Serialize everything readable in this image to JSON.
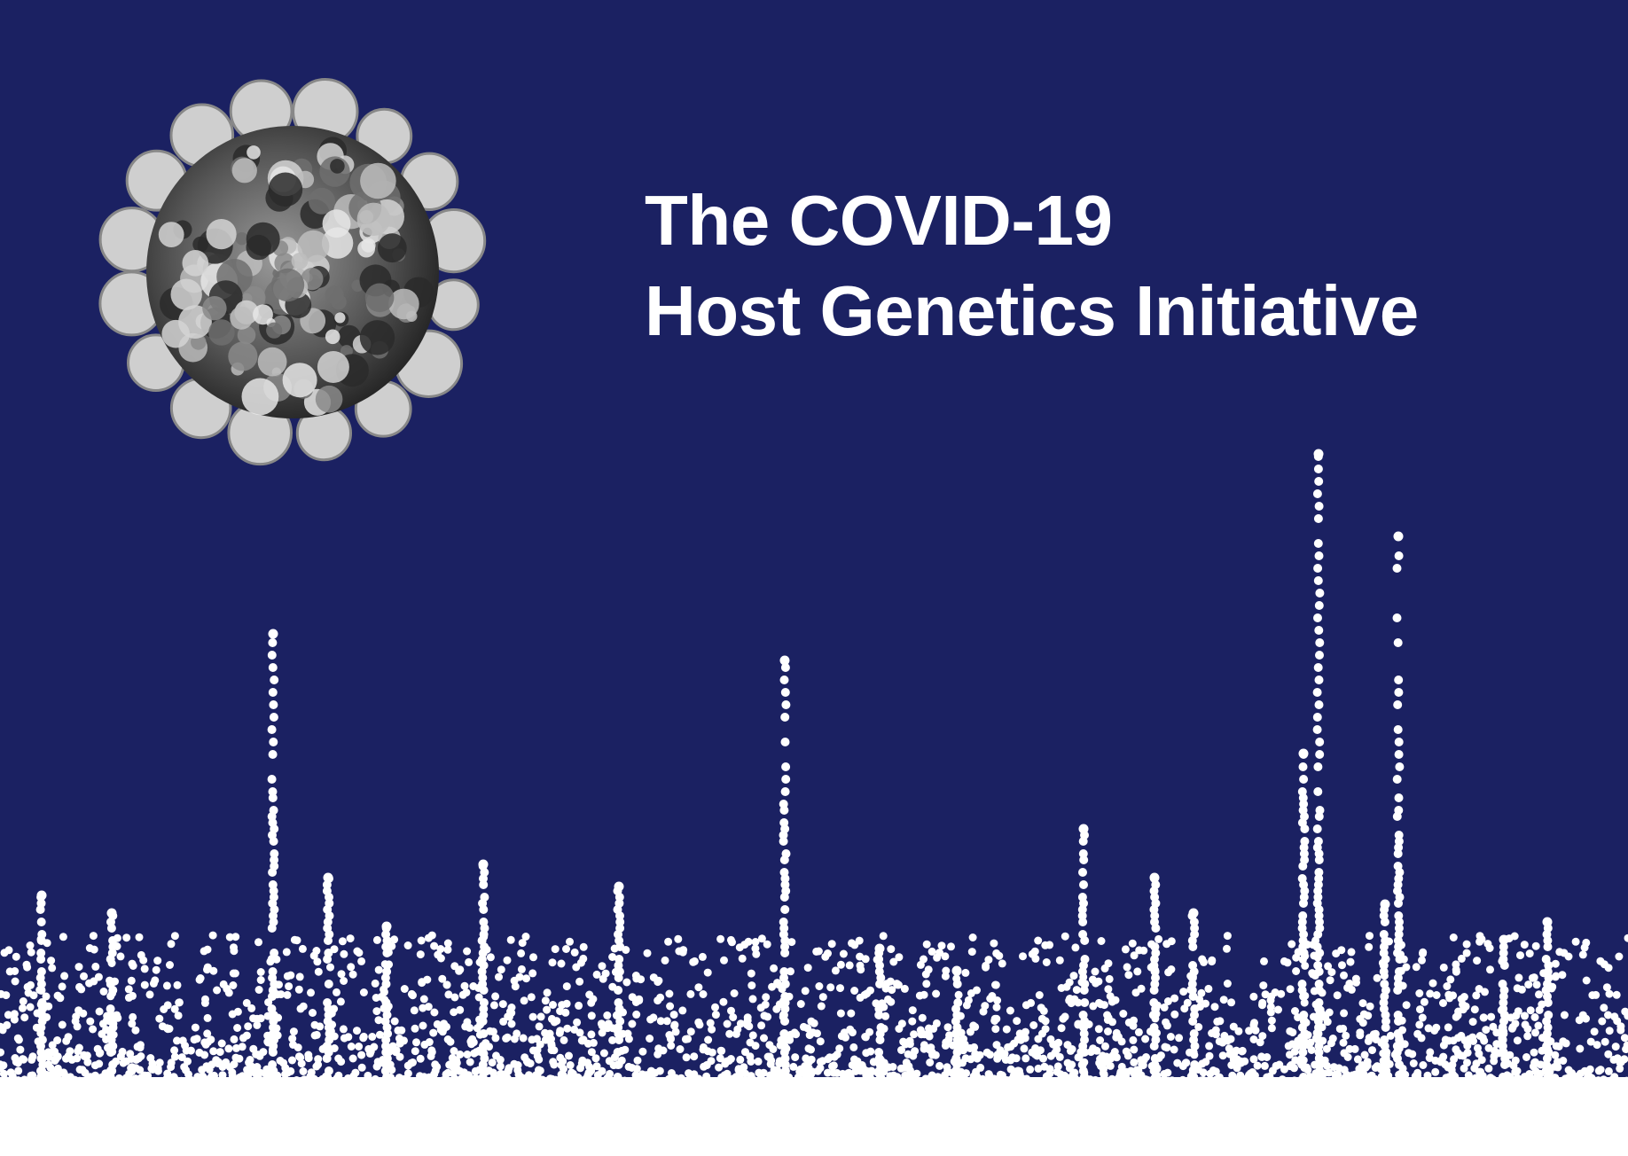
{
  "title": {
    "line1": "The COVID-19",
    "line2": "Host Genetics Initiative"
  },
  "colors": {
    "background": "#1b2162",
    "foreground": "#ffffff"
  },
  "icons": {
    "virus": "coronavirus-illustration",
    "plot": "manhattan-plot-dots"
  }
}
